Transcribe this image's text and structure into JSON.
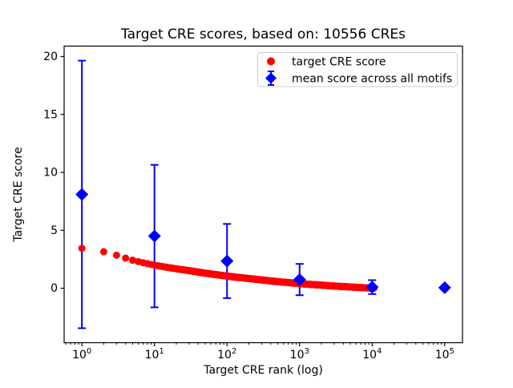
{
  "figure": {
    "title": "Target CRE scores, based on: 10556 CREs",
    "background": "#ffffff"
  },
  "axes": {
    "x_label": "Target CRE rank (log)",
    "y_label": "Target CRE score",
    "x_scale": "log",
    "x_tick_base": "10",
    "x_tick_exponents": [
      "0",
      "1",
      "2",
      "3",
      "4",
      "5"
    ],
    "y_ticks": [
      "0",
      "5",
      "10",
      "15",
      "20"
    ],
    "frame_color": "#000000"
  },
  "legend": {
    "items": [
      {
        "label": "target CRE score",
        "marker": "circle",
        "color": "#ff0000"
      },
      {
        "label": "mean score across all motifs",
        "marker": "diamond-errorbar",
        "color": "#0000ff"
      }
    ]
  },
  "chart_data": {
    "type": "scatter",
    "title": "Target CRE scores, based on: 10556 CREs",
    "xlabel": "Target CRE rank (log)",
    "ylabel": "Target CRE score",
    "x_scale": "log",
    "xlim_log10": [
      -0.245,
      5.245
    ],
    "ylim": [
      -4.7,
      20.9
    ],
    "grid": false,
    "legend_position": "upper right",
    "n_cres": 10556,
    "series": [
      {
        "name": "target CRE score",
        "marker": "circle",
        "color": "#ff0000",
        "n_points": 10556,
        "note": "dense decreasing curve of 10556 ranked scores; anchor points [rank, score] interpolated in log10(rank)",
        "anchors_rank_score": [
          [
            1,
            3.45
          ],
          [
            2,
            3.15
          ],
          [
            3,
            2.85
          ],
          [
            4,
            2.6
          ],
          [
            5,
            2.42
          ],
          [
            6,
            2.3
          ],
          [
            8,
            2.12
          ],
          [
            10,
            2.0
          ],
          [
            15,
            1.8
          ],
          [
            20,
            1.68
          ],
          [
            30,
            1.52
          ],
          [
            50,
            1.3
          ],
          [
            70,
            1.18
          ],
          [
            100,
            1.05
          ],
          [
            150,
            0.92
          ],
          [
            200,
            0.84
          ],
          [
            300,
            0.72
          ],
          [
            500,
            0.57
          ],
          [
            700,
            0.49
          ],
          [
            1000,
            0.4
          ],
          [
            1500,
            0.32
          ],
          [
            2000,
            0.27
          ],
          [
            3000,
            0.19
          ],
          [
            5000,
            0.11
          ],
          [
            7000,
            0.06
          ],
          [
            10000,
            0.01
          ],
          [
            10556,
            0.0
          ]
        ]
      },
      {
        "name": "mean score across all motifs",
        "marker": "diamond",
        "color": "#0000ff",
        "x": [
          1,
          10,
          100,
          1000,
          10000,
          100000
        ],
        "y": [
          8.1,
          4.5,
          2.35,
          0.75,
          0.1,
          0.05
        ],
        "yerr": [
          11.55,
          6.15,
          3.2,
          1.35,
          0.6,
          0.0
        ]
      }
    ]
  }
}
